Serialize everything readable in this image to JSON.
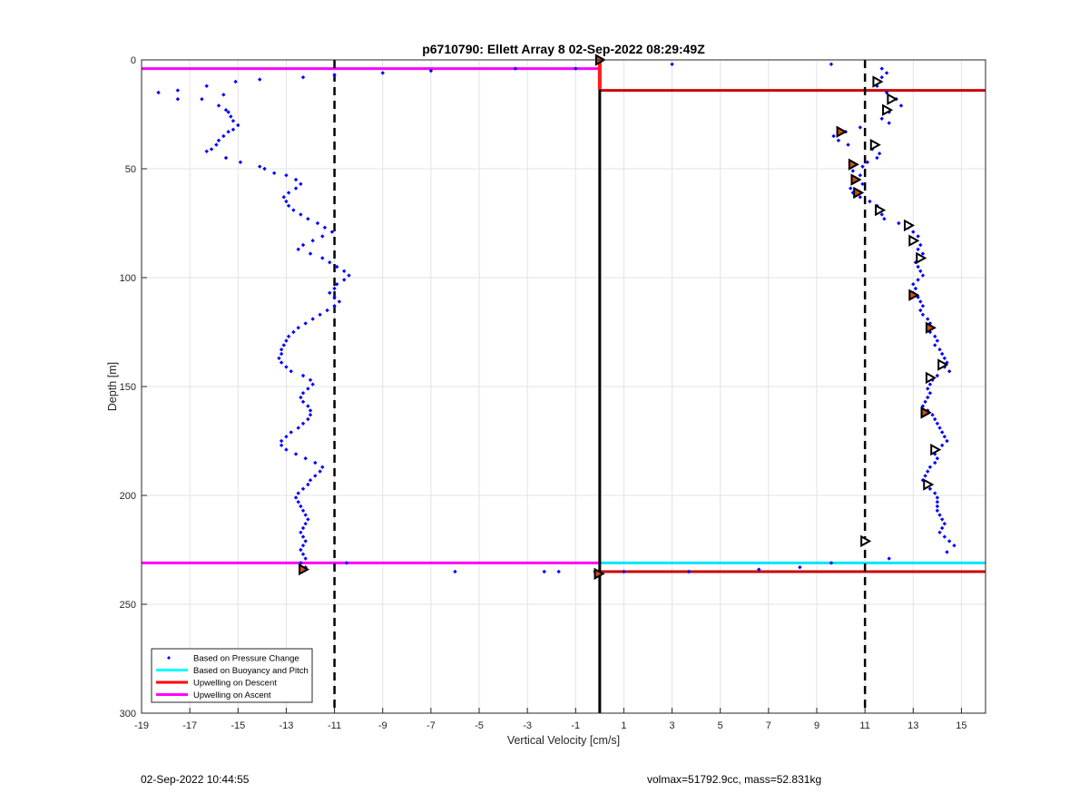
{
  "footer": {
    "timestamp": "02-Sep-2022 10:44:55",
    "meta": "volmax=51792.9cc, mass=52.831kg"
  },
  "chart_data": {
    "type": "scatter",
    "title": "p6710790: Ellett Array 8 02-Sep-2022 08:29:49Z",
    "xlabel": "Vertical Velocity [cm/s]",
    "ylabel": "Depth [m]",
    "xlim": [
      -19,
      16
    ],
    "ylim": [
      0,
      300
    ],
    "y_reversed": true,
    "grid": true,
    "xticks": [
      -19,
      -17,
      -15,
      -13,
      -11,
      -9,
      -7,
      -5,
      -3,
      -1,
      1,
      3,
      5,
      7,
      9,
      11,
      13,
      15
    ],
    "yticks": [
      0,
      50,
      100,
      150,
      200,
      250,
      300
    ],
    "legend_position": "bottom-left",
    "legend": [
      {
        "label": "Based on Pressure Change",
        "kind": "marker",
        "color": "#0000ff"
      },
      {
        "label": "Based on Buoyancy and Pitch",
        "kind": "line",
        "color": "#00ffff"
      },
      {
        "label": "Upwelling on Descent",
        "kind": "line",
        "color": "#ff0000"
      },
      {
        "label": "Upwelling on Ascent",
        "kind": "line",
        "color": "#ff00ff"
      }
    ],
    "reference_lines": [
      {
        "name": "zero",
        "orientation": "vertical",
        "x": 0,
        "y_range": [
          0,
          300
        ],
        "color": "#000000",
        "style": "solid"
      },
      {
        "name": "lower-limit",
        "orientation": "vertical",
        "x": -11,
        "y_range": [
          0,
          300
        ],
        "color": "#000000",
        "style": "dashed"
      },
      {
        "name": "upper-limit",
        "orientation": "vertical",
        "x": 11,
        "y_range": [
          0,
          300
        ],
        "color": "#000000",
        "style": "dashed"
      }
    ],
    "upwelling_lines": [
      {
        "series": "Upwelling on Ascent",
        "y": 4,
        "x_range": [
          -19,
          0
        ],
        "color": "#ff00ff"
      },
      {
        "series": "Upwelling on Ascent",
        "y": 231,
        "x_range": [
          -19,
          0
        ],
        "color": "#ff00ff"
      },
      {
        "series": "Upwelling on Descent",
        "y": 14,
        "x_range": [
          0,
          16
        ],
        "color": "#cc0000"
      },
      {
        "series": "Upwelling on Descent",
        "y": 235,
        "x_range": [
          0,
          16
        ],
        "color": "#cc0000"
      },
      {
        "series": "Based on Buoyancy and Pitch",
        "y": 231,
        "x_range": [
          0,
          16
        ],
        "color": "#00e5ff"
      }
    ],
    "ascent_profile": [
      [
        -18.3,
        15
      ],
      [
        -17.5,
        14
      ],
      [
        -17.5,
        18
      ],
      [
        -16.3,
        12
      ],
      [
        -16.5,
        18
      ],
      [
        -15.1,
        10
      ],
      [
        -15.6,
        16
      ],
      [
        -14.1,
        9
      ],
      [
        -12.3,
        8
      ],
      [
        -15.8,
        21
      ],
      [
        -15.5,
        23
      ],
      [
        -15.4,
        24
      ],
      [
        -15.3,
        26
      ],
      [
        -15.2,
        28
      ],
      [
        -15.0,
        30
      ],
      [
        -15.2,
        32
      ],
      [
        -15.4,
        33
      ],
      [
        -15.6,
        35
      ],
      [
        -15.8,
        37
      ],
      [
        -15.9,
        39
      ],
      [
        -16.1,
        41
      ],
      [
        -16.3,
        42
      ],
      [
        -15.5,
        45
      ],
      [
        -14.9,
        47
      ],
      [
        -14.1,
        49
      ],
      [
        -13.9,
        50
      ],
      [
        -13.5,
        52
      ],
      [
        -13.0,
        53
      ],
      [
        -12.6,
        55
      ],
      [
        -12.4,
        57
      ],
      [
        -12.6,
        59
      ],
      [
        -12.9,
        61
      ],
      [
        -13.1,
        63
      ],
      [
        -13.0,
        65
      ],
      [
        -12.9,
        67
      ],
      [
        -12.7,
        69
      ],
      [
        -12.4,
        71
      ],
      [
        -12.1,
        73
      ],
      [
        -11.7,
        75
      ],
      [
        -11.4,
        77
      ],
      [
        -11.1,
        79
      ],
      [
        -11.5,
        81
      ],
      [
        -11.9,
        83
      ],
      [
        -12.3,
        85
      ],
      [
        -12.5,
        87
      ],
      [
        -12.0,
        89
      ],
      [
        -11.5,
        91
      ],
      [
        -11.2,
        93
      ],
      [
        -10.9,
        95
      ],
      [
        -10.6,
        97
      ],
      [
        -10.4,
        99
      ],
      [
        -10.6,
        101
      ],
      [
        -10.9,
        103
      ],
      [
        -11.0,
        105
      ],
      [
        -11.2,
        107
      ],
      [
        -11.0,
        109
      ],
      [
        -10.8,
        111
      ],
      [
        -11.0,
        113
      ],
      [
        -11.3,
        115
      ],
      [
        -11.6,
        117
      ],
      [
        -11.9,
        119
      ],
      [
        -12.2,
        121
      ],
      [
        -12.5,
        123
      ],
      [
        -12.7,
        125
      ],
      [
        -12.9,
        127
      ],
      [
        -13.0,
        129
      ],
      [
        -13.1,
        131
      ],
      [
        -13.2,
        133
      ],
      [
        -13.2,
        135
      ],
      [
        -13.3,
        137
      ],
      [
        -13.2,
        139
      ],
      [
        -13.0,
        141
      ],
      [
        -12.8,
        143
      ],
      [
        -12.3,
        145
      ],
      [
        -12.0,
        147
      ],
      [
        -11.9,
        149
      ],
      [
        -12.1,
        151
      ],
      [
        -12.3,
        153
      ],
      [
        -12.4,
        155
      ],
      [
        -12.3,
        157
      ],
      [
        -12.1,
        159
      ],
      [
        -12.0,
        161
      ],
      [
        -12.0,
        163
      ],
      [
        -12.1,
        165
      ],
      [
        -12.3,
        167
      ],
      [
        -12.5,
        169
      ],
      [
        -12.8,
        171
      ],
      [
        -13.0,
        173
      ],
      [
        -13.2,
        175
      ],
      [
        -13.2,
        177
      ],
      [
        -13.0,
        179
      ],
      [
        -12.6,
        181
      ],
      [
        -12.2,
        183
      ],
      [
        -11.8,
        185
      ],
      [
        -11.5,
        187
      ],
      [
        -11.6,
        189
      ],
      [
        -11.8,
        191
      ],
      [
        -12.0,
        193
      ],
      [
        -12.1,
        195
      ],
      [
        -12.3,
        197
      ],
      [
        -12.5,
        199
      ],
      [
        -12.6,
        201
      ],
      [
        -12.5,
        203
      ],
      [
        -12.4,
        205
      ],
      [
        -12.3,
        207
      ],
      [
        -12.2,
        209
      ],
      [
        -12.1,
        211
      ],
      [
        -12.2,
        213
      ],
      [
        -12.3,
        215
      ],
      [
        -12.4,
        217
      ],
      [
        -12.3,
        219
      ],
      [
        -12.2,
        221
      ],
      [
        -12.3,
        223
      ],
      [
        -12.4,
        225
      ],
      [
        -12.3,
        227
      ],
      [
        -12.2,
        229
      ],
      [
        -12.4,
        231
      ],
      [
        -12.2,
        233
      ],
      [
        -12.3,
        234
      ]
    ],
    "descent_profile": [
      [
        11.7,
        4
      ],
      [
        11.9,
        6
      ],
      [
        11.7,
        8
      ],
      [
        11.4,
        10
      ],
      [
        11.5,
        12
      ],
      [
        11.9,
        15
      ],
      [
        12.3,
        18
      ],
      [
        12.5,
        21
      ],
      [
        12.0,
        24
      ],
      [
        11.7,
        27
      ],
      [
        12.0,
        29
      ],
      [
        10.8,
        31
      ],
      [
        10.2,
        33
      ],
      [
        9.7,
        35
      ],
      [
        9.9,
        37
      ],
      [
        10.3,
        39
      ],
      [
        11.3,
        41
      ],
      [
        11.6,
        43
      ],
      [
        11.5,
        45
      ],
      [
        11.1,
        47
      ],
      [
        10.9,
        49
      ],
      [
        10.5,
        51
      ],
      [
        10.8,
        53
      ],
      [
        10.6,
        55
      ],
      [
        10.9,
        57
      ],
      [
        10.4,
        59
      ],
      [
        10.5,
        61
      ],
      [
        10.8,
        63
      ],
      [
        11.2,
        65
      ],
      [
        11.5,
        67
      ],
      [
        11.6,
        69
      ],
      [
        11.7,
        71
      ],
      [
        11.8,
        73
      ],
      [
        12.4,
        75
      ],
      [
        12.8,
        77
      ],
      [
        13.0,
        79
      ],
      [
        13.2,
        81
      ],
      [
        13.1,
        83
      ],
      [
        13.3,
        85
      ],
      [
        13.2,
        87
      ],
      [
        13.4,
        89
      ],
      [
        13.3,
        91
      ],
      [
        13.1,
        93
      ],
      [
        13.2,
        95
      ],
      [
        13.3,
        97
      ],
      [
        13.4,
        99
      ],
      [
        13.2,
        101
      ],
      [
        13.0,
        103
      ],
      [
        13.1,
        105
      ],
      [
        13.0,
        107
      ],
      [
        13.2,
        109
      ],
      [
        13.3,
        111
      ],
      [
        13.4,
        113
      ],
      [
        13.3,
        115
      ],
      [
        13.4,
        117
      ],
      [
        13.6,
        119
      ],
      [
        13.7,
        121
      ],
      [
        13.8,
        123
      ],
      [
        13.7,
        125
      ],
      [
        13.9,
        127
      ],
      [
        14.0,
        129
      ],
      [
        13.9,
        131
      ],
      [
        14.1,
        133
      ],
      [
        14.2,
        135
      ],
      [
        14.3,
        137
      ],
      [
        14.4,
        139
      ],
      [
        14.3,
        141
      ],
      [
        14.5,
        143
      ],
      [
        14.0,
        145
      ],
      [
        13.8,
        147
      ],
      [
        13.7,
        149
      ],
      [
        13.6,
        151
      ],
      [
        13.7,
        153
      ],
      [
        13.6,
        155
      ],
      [
        13.5,
        157
      ],
      [
        13.4,
        159
      ],
      [
        13.6,
        161
      ],
      [
        13.8,
        163
      ],
      [
        13.9,
        165
      ],
      [
        14.0,
        167
      ],
      [
        14.1,
        169
      ],
      [
        14.2,
        171
      ],
      [
        14.3,
        173
      ],
      [
        14.4,
        175
      ],
      [
        14.2,
        177
      ],
      [
        14.0,
        179
      ],
      [
        13.9,
        181
      ],
      [
        14.0,
        183
      ],
      [
        13.9,
        185
      ],
      [
        13.7,
        187
      ],
      [
        13.6,
        189
      ],
      [
        13.5,
        191
      ],
      [
        13.4,
        193
      ],
      [
        13.5,
        195
      ],
      [
        13.7,
        197
      ],
      [
        13.9,
        199
      ],
      [
        14.0,
        201
      ],
      [
        14.0,
        203
      ],
      [
        14.0,
        205
      ],
      [
        14.0,
        207
      ],
      [
        14.1,
        209
      ],
      [
        14.2,
        211
      ],
      [
        14.3,
        213
      ],
      [
        14.2,
        215
      ],
      [
        14.1,
        217
      ],
      [
        14.3,
        219
      ],
      [
        14.5,
        221
      ],
      [
        14.7,
        223
      ],
      [
        14.4,
        226
      ],
      [
        9.6,
        231
      ]
    ],
    "scatter_extras": [
      [
        -11.0,
        7
      ],
      [
        -9.0,
        6
      ],
      [
        -7.0,
        5
      ],
      [
        -3.5,
        4
      ],
      [
        -1.0,
        4
      ],
      [
        3.0,
        2
      ],
      [
        9.6,
        2
      ],
      [
        -10.5,
        231
      ],
      [
        -6.0,
        235
      ],
      [
        -2.3,
        235
      ],
      [
        -1.7,
        235
      ],
      [
        1.0,
        235
      ],
      [
        3.7,
        235
      ],
      [
        6.6,
        234
      ],
      [
        8.3,
        233
      ],
      [
        12.0,
        229
      ],
      [
        -0.2,
        235
      ],
      [
        -0.1,
        236
      ],
      [
        0.0,
        236
      ]
    ],
    "near_surface_descent": [
      [
        0.0,
        1
      ],
      [
        0.0,
        2
      ],
      [
        0.0,
        3
      ],
      [
        0.0,
        4
      ],
      [
        0.0,
        5
      ],
      [
        0.0,
        6
      ],
      [
        0.0,
        7
      ],
      [
        0.0,
        8
      ],
      [
        0.0,
        9
      ],
      [
        0.0,
        10
      ],
      [
        0.0,
        11
      ],
      [
        0.0,
        12
      ],
      [
        0.0,
        13
      ]
    ],
    "triangle_markers": [
      [
        11.5,
        10
      ],
      [
        12.1,
        18
      ],
      [
        11.9,
        23
      ],
      [
        11.4,
        39
      ],
      [
        11.6,
        69
      ],
      [
        12.8,
        76
      ],
      [
        13.0,
        83
      ],
      [
        13.3,
        91
      ],
      [
        14.2,
        140
      ],
      [
        13.7,
        146
      ],
      [
        13.5,
        162
      ],
      [
        13.9,
        179
      ],
      [
        13.6,
        195
      ],
      [
        11.0,
        221
      ]
    ],
    "filled_markers": [
      [
        10.0,
        33
      ],
      [
        10.5,
        48
      ],
      [
        10.6,
        55
      ],
      [
        10.7,
        61
      ],
      [
        13.0,
        108
      ],
      [
        13.7,
        123
      ],
      [
        13.5,
        162
      ],
      [
        -12.3,
        234
      ],
      [
        0.0,
        0
      ],
      [
        -0.05,
        236
      ]
    ]
  }
}
